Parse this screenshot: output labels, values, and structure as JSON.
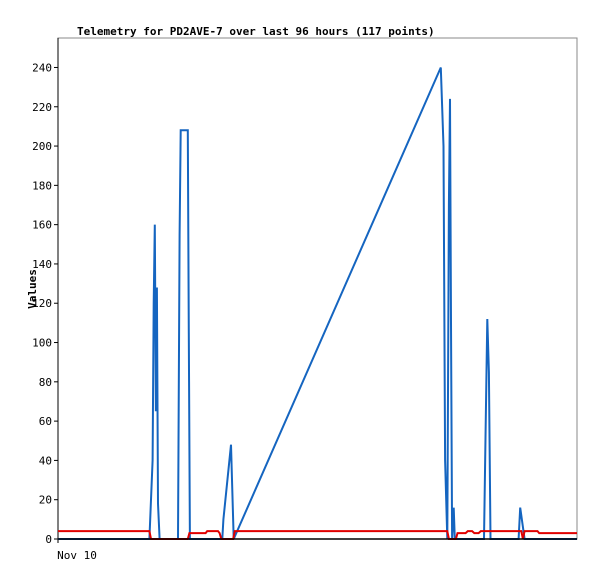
{
  "chart_data": {
    "type": "line",
    "title": "Telemetry for PD2AVE-7 over last 96 hours (117 points)",
    "xlabel": "",
    "ylabel": "Values",
    "x_tick_labels": [
      "Nov 10"
    ],
    "ylim": [
      0,
      255
    ],
    "y_ticks": [
      0,
      20,
      40,
      60,
      80,
      100,
      120,
      140,
      160,
      180,
      200,
      220,
      240
    ],
    "xlim": [
      0,
      96
    ],
    "grid": false,
    "legend": "none",
    "series": [
      {
        "color": "#1565c0",
        "points": [
          [
            0,
            0
          ],
          [
            16.9,
            0
          ],
          [
            17.5,
            40
          ],
          [
            17.7,
            120
          ],
          [
            17.9,
            160
          ],
          [
            18.1,
            65
          ],
          [
            18.3,
            128
          ],
          [
            18.5,
            18
          ],
          [
            18.8,
            0
          ],
          [
            22.2,
            0
          ],
          [
            22.5,
            155
          ],
          [
            22.7,
            208
          ],
          [
            24.0,
            208
          ],
          [
            24.2,
            105
          ],
          [
            24.4,
            0
          ],
          [
            30.4,
            0
          ],
          [
            30.6,
            10
          ],
          [
            32.0,
            48
          ],
          [
            32.5,
            0
          ],
          [
            70.8,
            240
          ],
          [
            71.3,
            200
          ],
          [
            71.6,
            40
          ],
          [
            72.0,
            0
          ],
          [
            72.3,
            170
          ],
          [
            72.5,
            224
          ],
          [
            72.7,
            110
          ],
          [
            72.9,
            0
          ],
          [
            73.2,
            16
          ],
          [
            73.4,
            0
          ],
          [
            78.8,
            0
          ],
          [
            79.1,
            55
          ],
          [
            79.4,
            112
          ],
          [
            79.7,
            85
          ],
          [
            80.0,
            0
          ],
          [
            85.2,
            0
          ],
          [
            85.5,
            16
          ],
          [
            86.3,
            0
          ],
          [
            96,
            0
          ]
        ]
      },
      {
        "color": "#e00000",
        "points": [
          [
            0,
            4
          ],
          [
            16.9,
            4
          ],
          [
            17.2,
            0
          ],
          [
            24.0,
            0
          ],
          [
            24.3,
            3
          ],
          [
            27.3,
            3
          ],
          [
            27.6,
            4
          ],
          [
            29.6,
            4
          ],
          [
            29.9,
            3
          ],
          [
            30.2,
            0
          ],
          [
            32.4,
            0
          ],
          [
            32.7,
            4
          ],
          [
            72.0,
            4
          ],
          [
            72.3,
            0
          ],
          [
            73.6,
            0
          ],
          [
            73.9,
            3
          ],
          [
            75.4,
            3
          ],
          [
            75.8,
            4
          ],
          [
            76.6,
            4
          ],
          [
            77.0,
            3
          ],
          [
            77.8,
            3
          ],
          [
            78.2,
            4
          ],
          [
            85.7,
            4
          ],
          [
            86.0,
            0
          ],
          [
            86.3,
            4
          ],
          [
            88.7,
            4
          ],
          [
            89.0,
            3
          ],
          [
            96,
            3
          ]
        ]
      },
      {
        "color": "#000000",
        "points": [
          [
            0,
            0
          ],
          [
            96,
            0
          ]
        ]
      }
    ]
  }
}
